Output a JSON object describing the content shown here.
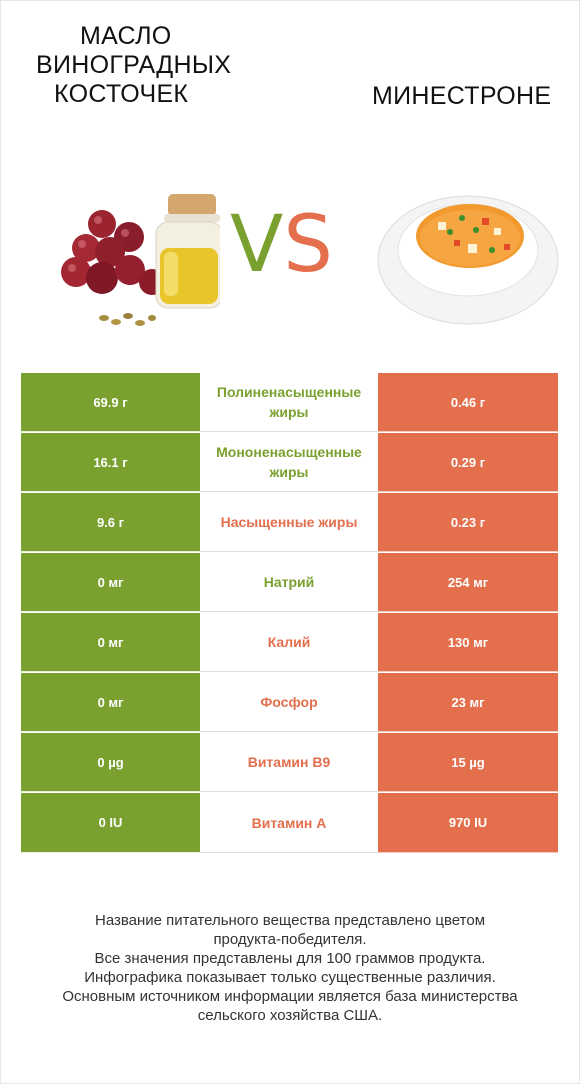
{
  "header": {
    "left_title_lines": [
      "Масло",
      "виноградных",
      "косточек"
    ],
    "right_title": "Минестроне",
    "vs_v": "V",
    "vs_s": "S"
  },
  "colors": {
    "left_product": "#7aa130",
    "right_product": "#e46f4d"
  },
  "images": {
    "left": "grape-seed-oil-image",
    "right": "minestrone-soup-image"
  },
  "rows": [
    {
      "left": "69.9 г",
      "nutrient": "Полиненасыщенные жиры",
      "right": "0.46 г",
      "winner": "green"
    },
    {
      "left": "16.1 г",
      "nutrient": "Мононенасыщенные жиры",
      "right": "0.29 г",
      "winner": "green"
    },
    {
      "left": "9.6 г",
      "nutrient": "Насыщенные жиры",
      "right": "0.23 г",
      "winner": "red"
    },
    {
      "left": "0 мг",
      "nutrient": "Натрий",
      "right": "254 мг",
      "winner": "green"
    },
    {
      "left": "0 мг",
      "nutrient": "Калий",
      "right": "130 мг",
      "winner": "red"
    },
    {
      "left": "0 мг",
      "nutrient": "Фосфор",
      "right": "23 мг",
      "winner": "red"
    },
    {
      "left": "0 µg",
      "nutrient": "Витамин B9",
      "right": "15 µg",
      "winner": "red"
    },
    {
      "left": "0 IU",
      "nutrient": "Витамин A",
      "right": "970 IU",
      "winner": "red"
    }
  ],
  "footer": {
    "lines": [
      "Название питательного вещества представлено цветом",
      "продукта-победителя.",
      "Все значения представлены для 100 граммов продукта.",
      "Инфографика показывает только существенные различия.",
      "Основным источником информации является база министерства",
      "сельского хозяйства США."
    ]
  }
}
